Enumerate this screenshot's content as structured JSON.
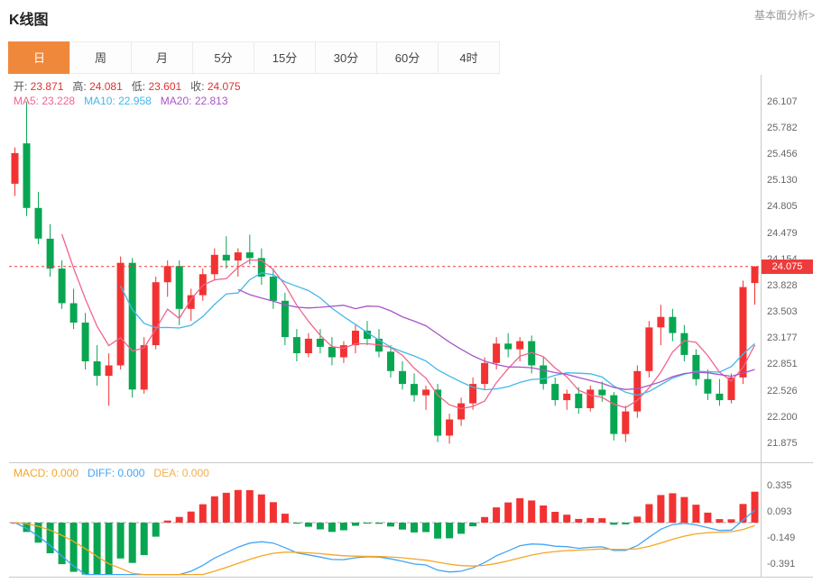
{
  "header": {
    "title": "K线图",
    "analysis_link": "基本面分析>"
  },
  "tabs": [
    {
      "key": "day",
      "label": "日",
      "active": true
    },
    {
      "key": "week",
      "label": "周",
      "active": false
    },
    {
      "key": "month",
      "label": "月",
      "active": false
    },
    {
      "key": "5min",
      "label": "5分",
      "active": false
    },
    {
      "key": "15min",
      "label": "15分",
      "active": false
    },
    {
      "key": "30min",
      "label": "30分",
      "active": false
    },
    {
      "key": "60min",
      "label": "60分",
      "active": false
    },
    {
      "key": "4hour",
      "label": "4时",
      "active": false
    }
  ],
  "legend": {
    "ohlc": [
      {
        "key": "open",
        "label": "开:",
        "value": "23.871"
      },
      {
        "key": "high",
        "label": "高:",
        "value": "24.081"
      },
      {
        "key": "low",
        "label": "低:",
        "value": "23.601"
      },
      {
        "key": "close",
        "label": "收:",
        "value": "24.075"
      }
    ],
    "ma": [
      {
        "key": "ma5",
        "label": "MA5:",
        "value": "23.228",
        "color": "#f0648c"
      },
      {
        "key": "ma10",
        "label": "MA10:",
        "value": "22.958",
        "color": "#42b8e8"
      },
      {
        "key": "ma20",
        "label": "MA20:",
        "value": "22.813",
        "color": "#a855c8"
      }
    ],
    "macd": [
      {
        "key": "macd",
        "label": "MACD:",
        "value": "0.000",
        "color": "#f5a623"
      },
      {
        "key": "diff",
        "label": "DIFF:",
        "value": "0.000",
        "color": "#42a5f5"
      },
      {
        "key": "dea",
        "label": "DEA:",
        "value": "0.000",
        "color": "#f0b050"
      }
    ]
  },
  "chart_data": {
    "type": "candlestick",
    "title": "K线图",
    "sub_panel": "MACD",
    "price_axis_ticks": [
      "26.107",
      "25.782",
      "25.456",
      "25.130",
      "24.805",
      "24.479",
      "24.154",
      "23.828",
      "23.503",
      "23.177",
      "22.851",
      "22.526",
      "22.200",
      "21.875"
    ],
    "macd_axis_ticks": [
      "0.335",
      "0.093",
      "-0.149",
      "-0.391"
    ],
    "current_price": "24.075",
    "price_domain": [
      21.65,
      26.45
    ],
    "macd_domain": [
      -0.5,
      0.55
    ],
    "grid": false,
    "legend_position": "top-left",
    "colors": {
      "up": "#f23232",
      "down": "#08a651",
      "ma5": "#f0648c",
      "ma10": "#42b8e8",
      "ma20": "#a855c8",
      "diff": "#42a5f5",
      "dea": "#f5a623",
      "accent": "#f0883c",
      "price_tag": "#ed3b3b"
    },
    "candles": [
      [
        25.1,
        25.55,
        24.95,
        25.48
      ],
      [
        25.6,
        26.107,
        24.7,
        24.8
      ],
      [
        24.8,
        25.0,
        24.35,
        24.42
      ],
      [
        24.42,
        24.6,
        23.95,
        24.05
      ],
      [
        24.05,
        24.15,
        23.55,
        23.62
      ],
      [
        23.62,
        23.8,
        23.3,
        23.38
      ],
      [
        23.38,
        23.5,
        22.8,
        22.9
      ],
      [
        22.9,
        23.1,
        22.6,
        22.72
      ],
      [
        22.72,
        23.0,
        22.35,
        22.85
      ],
      [
        22.85,
        24.2,
        22.8,
        24.12
      ],
      [
        24.12,
        24.18,
        22.45,
        22.55
      ],
      [
        22.55,
        23.2,
        22.5,
        23.1
      ],
      [
        23.1,
        23.95,
        23.05,
        23.88
      ],
      [
        23.88,
        24.15,
        23.7,
        24.08
      ],
      [
        24.08,
        24.15,
        23.35,
        23.55
      ],
      [
        23.55,
        23.8,
        23.4,
        23.72
      ],
      [
        23.72,
        24.05,
        23.65,
        23.98
      ],
      [
        23.98,
        24.3,
        23.9,
        24.22
      ],
      [
        24.22,
        24.45,
        24.05,
        24.15
      ],
      [
        24.15,
        24.3,
        23.95,
        24.25
      ],
      [
        24.25,
        24.47,
        24.1,
        24.18
      ],
      [
        24.18,
        24.3,
        23.85,
        23.95
      ],
      [
        23.95,
        24.05,
        23.55,
        23.65
      ],
      [
        23.65,
        23.75,
        23.1,
        23.2
      ],
      [
        23.2,
        23.3,
        22.9,
        23.0
      ],
      [
        23.0,
        23.25,
        22.95,
        23.18
      ],
      [
        23.18,
        23.3,
        23.0,
        23.08
      ],
      [
        23.08,
        23.2,
        22.85,
        22.95
      ],
      [
        22.95,
        23.15,
        22.88,
        23.1
      ],
      [
        23.1,
        23.35,
        23.0,
        23.28
      ],
      [
        23.28,
        23.4,
        23.1,
        23.18
      ],
      [
        23.18,
        23.3,
        22.95,
        23.02
      ],
      [
        23.02,
        23.1,
        22.7,
        22.78
      ],
      [
        22.78,
        22.9,
        22.55,
        22.62
      ],
      [
        22.62,
        22.75,
        22.4,
        22.48
      ],
      [
        22.48,
        22.6,
        22.3,
        22.55
      ],
      [
        22.55,
        22.62,
        21.9,
        21.98
      ],
      [
        21.98,
        22.25,
        21.88,
        22.18
      ],
      [
        22.18,
        22.45,
        22.1,
        22.38
      ],
      [
        22.38,
        22.7,
        22.3,
        22.62
      ],
      [
        22.62,
        22.95,
        22.55,
        22.88
      ],
      [
        22.88,
        23.2,
        22.8,
        23.12
      ],
      [
        23.12,
        23.25,
        22.95,
        23.05
      ],
      [
        23.05,
        23.2,
        22.9,
        23.15
      ],
      [
        23.15,
        23.22,
        22.75,
        22.85
      ],
      [
        22.85,
        22.95,
        22.55,
        22.62
      ],
      [
        22.62,
        22.7,
        22.35,
        22.42
      ],
      [
        22.42,
        22.55,
        22.3,
        22.5
      ],
      [
        22.5,
        22.58,
        22.25,
        22.32
      ],
      [
        22.32,
        22.6,
        22.28,
        22.55
      ],
      [
        22.55,
        22.65,
        22.4,
        22.48
      ],
      [
        22.48,
        22.52,
        21.92,
        22.0
      ],
      [
        22.0,
        22.35,
        21.9,
        22.28
      ],
      [
        22.28,
        22.85,
        22.2,
        22.78
      ],
      [
        22.78,
        23.4,
        22.7,
        23.32
      ],
      [
        23.32,
        23.6,
        23.1,
        23.45
      ],
      [
        23.45,
        23.55,
        23.15,
        23.25
      ],
      [
        23.25,
        23.35,
        22.9,
        22.98
      ],
      [
        22.98,
        23.05,
        22.6,
        22.68
      ],
      [
        22.68,
        22.8,
        22.42,
        22.5
      ],
      [
        22.5,
        22.68,
        22.35,
        22.42
      ],
      [
        22.42,
        22.75,
        22.38,
        22.7
      ],
      [
        22.7,
        23.9,
        22.62,
        23.82
      ],
      [
        23.871,
        24.081,
        23.601,
        24.075
      ]
    ]
  }
}
